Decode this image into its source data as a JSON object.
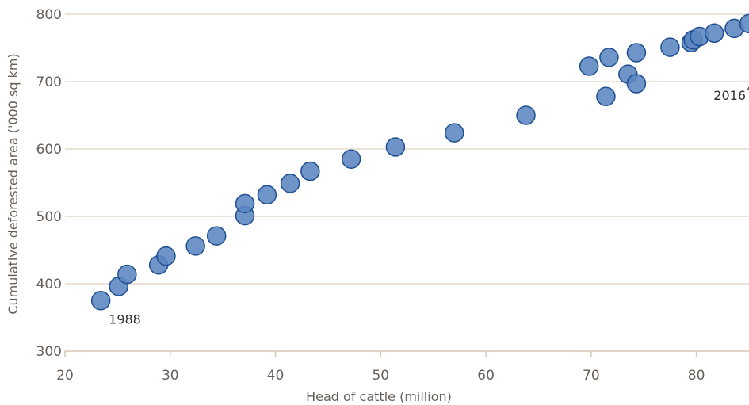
{
  "chart_data": {
    "type": "scatter",
    "title": "",
    "xlabel": "Head of cattle (million)",
    "ylabel": "Cumulative deforested area ('000 sq km)",
    "xlim": [
      20,
      85
    ],
    "ylim": [
      300,
      800
    ],
    "xticks": [
      20,
      30,
      40,
      50,
      60,
      70,
      80
    ],
    "yticks": [
      300,
      400,
      500,
      600,
      700,
      800
    ],
    "grid": true,
    "colors": {
      "point_fill": "#5b86c0",
      "point_stroke": "#1e4f92",
      "grid": "#e6d9cc",
      "axis": "#d8c6b5"
    },
    "points": [
      {
        "x": 23.4,
        "y": 375
      },
      {
        "x": 25.1,
        "y": 396
      },
      {
        "x": 25.9,
        "y": 414
      },
      {
        "x": 28.9,
        "y": 428
      },
      {
        "x": 29.6,
        "y": 441
      },
      {
        "x": 32.4,
        "y": 456
      },
      {
        "x": 34.4,
        "y": 471
      },
      {
        "x": 37.1,
        "y": 501
      },
      {
        "x": 37.1,
        "y": 519
      },
      {
        "x": 39.2,
        "y": 532
      },
      {
        "x": 41.4,
        "y": 549
      },
      {
        "x": 43.3,
        "y": 567
      },
      {
        "x": 47.2,
        "y": 585
      },
      {
        "x": 51.4,
        "y": 603
      },
      {
        "x": 57.0,
        "y": 624
      },
      {
        "x": 63.8,
        "y": 650
      },
      {
        "x": 69.8,
        "y": 723
      },
      {
        "x": 71.4,
        "y": 678
      },
      {
        "x": 71.7,
        "y": 736
      },
      {
        "x": 73.5,
        "y": 711
      },
      {
        "x": 74.3,
        "y": 697
      },
      {
        "x": 74.3,
        "y": 743
      },
      {
        "x": 77.5,
        "y": 751
      },
      {
        "x": 79.5,
        "y": 758
      },
      {
        "x": 79.7,
        "y": 762
      },
      {
        "x": 80.3,
        "y": 767
      },
      {
        "x": 81.7,
        "y": 772
      },
      {
        "x": 83.6,
        "y": 779
      },
      {
        "x": 85.0,
        "y": 786
      }
    ],
    "annotations": [
      {
        "label": "1988",
        "x": 23.4,
        "y": 375
      },
      {
        "label": "2016",
        "x": 85.0,
        "y": 786
      }
    ]
  }
}
